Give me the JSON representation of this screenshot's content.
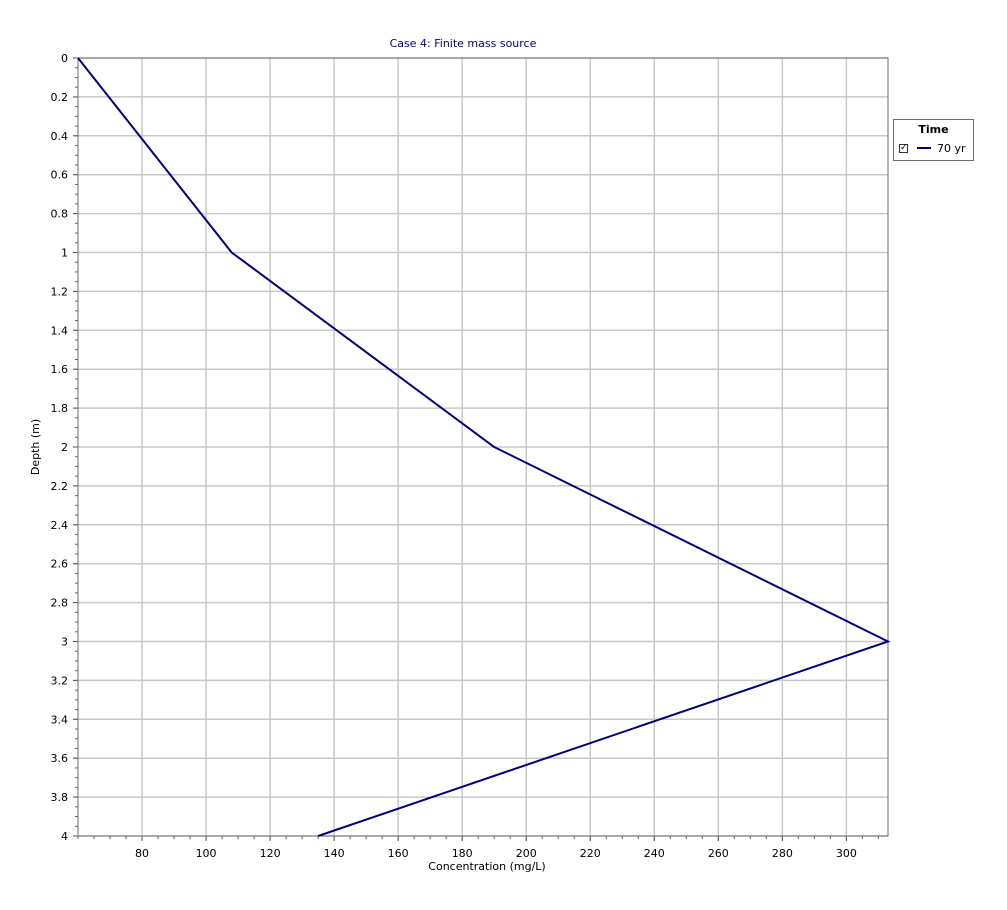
{
  "chart_data": {
    "type": "line",
    "title": "Case 4: Finite mass source",
    "xlabel": "Concentration (mg/L)",
    "ylabel": "Depth (m)",
    "xlim": [
      60,
      313
    ],
    "ylim": [
      0,
      4
    ],
    "y_inverted": true,
    "x_ticks": [
      80,
      100,
      120,
      140,
      160,
      180,
      200,
      220,
      240,
      260,
      280,
      300
    ],
    "y_ticks": [
      0,
      0.2,
      0.4,
      0.6,
      0.8,
      1,
      1.2,
      1.4,
      1.6,
      1.8,
      2,
      2.2,
      2.4,
      2.6,
      2.8,
      3,
      3.2,
      3.4,
      3.6,
      3.8,
      4
    ],
    "grid": true,
    "series": [
      {
        "name": "70 yr",
        "color": "#000080",
        "x": [
          60,
          108,
          190,
          313,
          135
        ],
        "y": [
          0,
          1,
          2,
          3,
          4
        ]
      }
    ],
    "legend": {
      "title": "Time",
      "placement": "right-top",
      "checked": true
    }
  }
}
